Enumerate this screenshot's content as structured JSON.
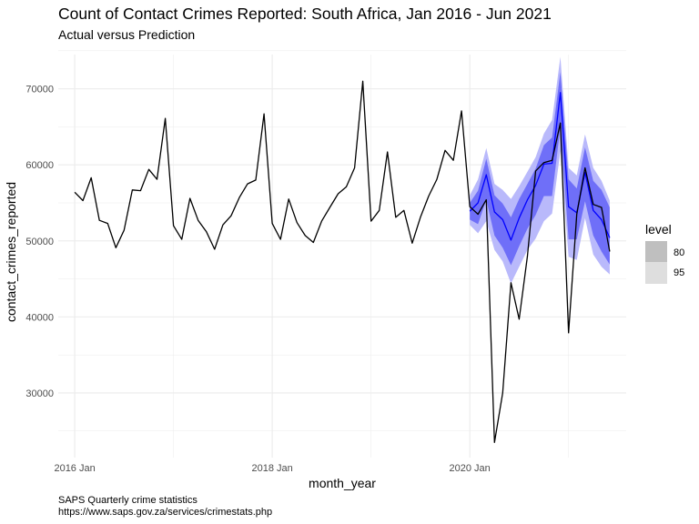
{
  "title": "Count of Contact Crimes Reported: South Africa, Jan 2016 - Jun 2021",
  "subtitle": "Actual versus Prediction",
  "caption": [
    "SAPS Quarterly crime statistics",
    "https://www.saps.gov.za/services/crimestats.php"
  ],
  "colors": {
    "actual": "#000000",
    "forecast": "#0000ff",
    "band80": "#6f6ff8",
    "band95": "#b9b9fb",
    "grid": "#ebebeb"
  },
  "chart_data": {
    "type": "line",
    "xlabel": "month_year",
    "ylabel": "contact_crimes_reported",
    "x_ticks": [
      "2016 Jan",
      "2018 Jan",
      "2020 Jan"
    ],
    "y_ticks": [
      "30000",
      "40000",
      "50000",
      "60000",
      "70000"
    ],
    "ylim": [
      21500,
      74500
    ],
    "x_range": [
      "2015-11",
      "2021-08"
    ],
    "legend": {
      "title": "level",
      "entries": [
        "80",
        "95"
      ],
      "position": "right"
    },
    "series": [
      {
        "name": "actual",
        "x": [
          "2016-01",
          "2016-02",
          "2016-03",
          "2016-04",
          "2016-05",
          "2016-06",
          "2016-07",
          "2016-08",
          "2016-09",
          "2016-10",
          "2016-11",
          "2016-12",
          "2017-01",
          "2017-02",
          "2017-03",
          "2017-04",
          "2017-05",
          "2017-06",
          "2017-07",
          "2017-08",
          "2017-09",
          "2017-10",
          "2017-11",
          "2017-12",
          "2018-01",
          "2018-02",
          "2018-03",
          "2018-04",
          "2018-05",
          "2018-06",
          "2018-07",
          "2018-08",
          "2018-09",
          "2018-10",
          "2018-11",
          "2018-12",
          "2019-01",
          "2019-02",
          "2019-03",
          "2019-04",
          "2019-05",
          "2019-06",
          "2019-07",
          "2019-08",
          "2019-09",
          "2019-10",
          "2019-11",
          "2019-12",
          "2020-01",
          "2020-02",
          "2020-03",
          "2020-04",
          "2020-05",
          "2020-06",
          "2020-07",
          "2020-08",
          "2020-09",
          "2020-10",
          "2020-11",
          "2020-12",
          "2021-01",
          "2021-02",
          "2021-03",
          "2021-04",
          "2021-05",
          "2021-06"
        ],
        "values": [
          56400,
          55300,
          58300,
          52700,
          52300,
          49100,
          51400,
          56700,
          56600,
          59400,
          58100,
          66100,
          52000,
          50200,
          55600,
          52700,
          51200,
          48900,
          52100,
          53300,
          55700,
          57500,
          58000,
          66700,
          52300,
          50200,
          55500,
          52400,
          50700,
          49800,
          52600,
          54400,
          56200,
          57100,
          59600,
          71000,
          52600,
          54000,
          61700,
          53100,
          54000,
          49700,
          53100,
          55900,
          58100,
          61900,
          60600,
          67100,
          54500,
          53500,
          55400,
          23500,
          30000,
          44500,
          39700,
          48000,
          59200,
          60300,
          60600,
          65500,
          37900,
          53500,
          59600,
          54800,
          54400,
          48600
        ]
      },
      {
        "name": "prediction",
        "x": [
          "2020-01",
          "2020-02",
          "2020-03",
          "2020-04",
          "2020-05",
          "2020-06",
          "2020-07",
          "2020-08",
          "2020-09",
          "2020-10",
          "2020-11",
          "2020-12",
          "2021-01",
          "2021-02",
          "2021-03",
          "2021-04",
          "2021-05",
          "2021-06"
        ],
        "values": [
          53900,
          55000,
          58700,
          53800,
          52800,
          50100,
          53000,
          55400,
          57300,
          60100,
          60200,
          69500,
          54500,
          53700,
          59000,
          54000,
          52800,
          50400
        ],
        "lo80": [
          52800,
          52200,
          55400,
          50700,
          49100,
          46800,
          49300,
          51600,
          53400,
          55900,
          55900,
          65000,
          50200,
          50200,
          55200,
          50700,
          48600,
          46900
        ],
        "hi80": [
          55000,
          56600,
          60800,
          56000,
          54900,
          53100,
          55500,
          57500,
          59500,
          62600,
          63600,
          72200,
          58100,
          56900,
          62300,
          57900,
          56700,
          54400
        ],
        "lo95": [
          52100,
          51000,
          52600,
          48800,
          47300,
          44400,
          46600,
          48800,
          50300,
          52600,
          53600,
          61800,
          47900,
          47500,
          53000,
          48200,
          46600,
          45600
        ],
        "hi95": [
          56000,
          58100,
          62200,
          57500,
          56700,
          55500,
          57200,
          59100,
          61000,
          64100,
          65900,
          74200,
          59600,
          58600,
          64000,
          59600,
          57900,
          55300
        ]
      }
    ],
    "grid": true
  }
}
